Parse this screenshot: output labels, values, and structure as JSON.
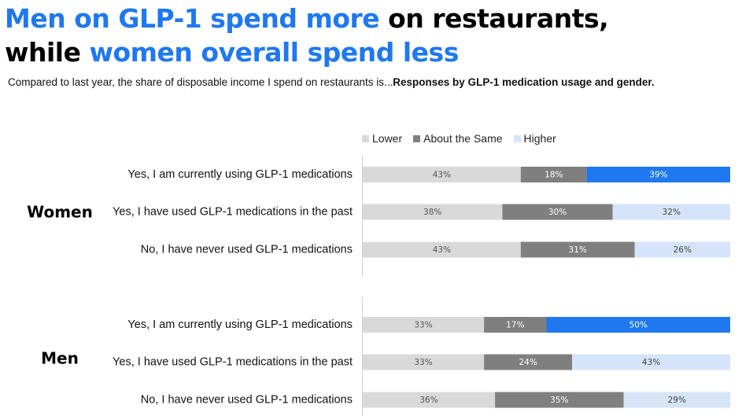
{
  "title": {
    "line1_blue": "Men on GLP-1 spend more",
    "line1_black": " on restaurants,",
    "line2_black": "while ",
    "line2_blue": "women overall spend less"
  },
  "subtitle": {
    "question": "Compared to last year, the share of disposable income I spend on restaurants is...",
    "note": "Responses by GLP-1 medication usage and gender."
  },
  "colors": {
    "lower": "#d9d9d9",
    "same": "#7f7f7f",
    "higher_highlight": "#1f78f0",
    "higher": "#d6e4fa",
    "title_blue": "#1f78f0"
  },
  "chart_data": {
    "type": "bar",
    "orientation": "horizontal-stacked-100",
    "legend": [
      "Lower",
      "About the Same",
      "Higher"
    ],
    "legend_position": "top",
    "groups": [
      {
        "name": "Women",
        "rows": [
          {
            "label": "Yes, I am currently using GLP-1 medications",
            "values": [
              43,
              18,
              39
            ],
            "value_labels": [
              "43%",
              "18%",
              "39%"
            ],
            "highlight": true
          },
          {
            "label": "Yes, I have used GLP-1 medications in the past",
            "values": [
              38,
              30,
              32
            ],
            "value_labels": [
              "38%",
              "30%",
              "32%"
            ],
            "highlight": false
          },
          {
            "label": "No, I have never used GLP-1 medications",
            "values": [
              43,
              31,
              26
            ],
            "value_labels": [
              "43%",
              "31%",
              "26%"
            ],
            "highlight": false
          }
        ]
      },
      {
        "name": "Men",
        "rows": [
          {
            "label": "Yes, I am currently using GLP-1 medications",
            "values": [
              33,
              17,
              50
            ],
            "value_labels": [
              "33%",
              "17%",
              "50%"
            ],
            "highlight": true
          },
          {
            "label": "Yes, I have used GLP-1 medications in the past",
            "values": [
              33,
              24,
              43
            ],
            "value_labels": [
              "33%",
              "24%",
              "43%"
            ],
            "highlight": false
          },
          {
            "label": "No, I have never used GLP-1 medications",
            "values": [
              36,
              35,
              29
            ],
            "value_labels": [
              "36%",
              "35%",
              "29%"
            ],
            "highlight": false
          }
        ]
      }
    ],
    "xlim": [
      0,
      100
    ]
  }
}
